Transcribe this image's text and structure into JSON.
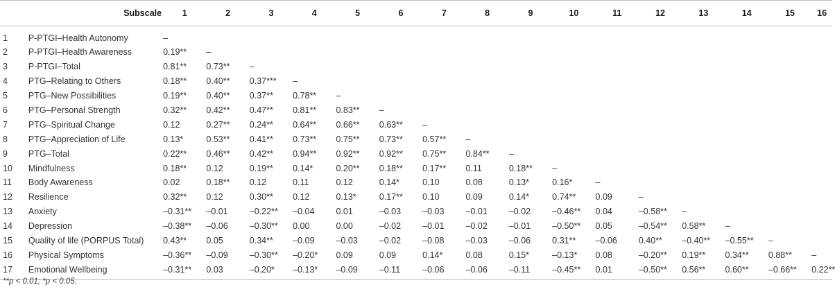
{
  "table": {
    "header_subscale": "Subscale",
    "columns": [
      "1",
      "2",
      "3",
      "4",
      "5",
      "6",
      "7",
      "8",
      "9",
      "10",
      "11",
      "12",
      "13",
      "14",
      "15",
      "16"
    ],
    "rows": [
      {
        "num": "1",
        "label": "P-PTGI–Health Autonomy",
        "values": [
          "–"
        ]
      },
      {
        "num": "2",
        "label": "P-PTGI–Health Awareness",
        "values": [
          "0.19**",
          "–"
        ]
      },
      {
        "num": "3",
        "label": "P-PTGI–Total",
        "values": [
          "0.81**",
          "0.73**",
          "–"
        ]
      },
      {
        "num": "4",
        "label": "PTG–Relating to Others",
        "values": [
          "0.18**",
          "0.40**",
          "0.37***",
          "–"
        ]
      },
      {
        "num": "5",
        "label": "PTG–New Possibilities",
        "values": [
          "0.19**",
          "0.40**",
          "0.37**",
          "0.78**",
          "–"
        ]
      },
      {
        "num": "6",
        "label": "PTG–Personal Strength",
        "values": [
          "0.32**",
          "0.42**",
          "0.47**",
          "0.81**",
          "0.83**",
          "–"
        ]
      },
      {
        "num": "7",
        "label": "PTG–Spiritual Change",
        "values": [
          "0.12",
          "0.27**",
          "0.24**",
          "0.64**",
          "0.66**",
          "0.63**",
          "–"
        ]
      },
      {
        "num": "8",
        "label": "PTG–Appreciation of Life",
        "values": [
          "0.13*",
          "0.53**",
          "0.41**",
          "0.73**",
          "0.75**",
          "0.73**",
          "0.57**",
          "–"
        ]
      },
      {
        "num": "9",
        "label": "PTG–Total",
        "values": [
          "0.22**",
          "0.46**",
          "0.42**",
          "0.94**",
          "0.92**",
          "0.92**",
          "0.75**",
          "0.84**",
          "–"
        ]
      },
      {
        "num": "10",
        "label": "Mindfulness",
        "values": [
          "0.18**",
          "0.12",
          "0.19**",
          "0.14*",
          "0.20**",
          "0.18**",
          "0.17**",
          "0.11",
          "0.18**",
          "–"
        ]
      },
      {
        "num": "11",
        "label": "Body Awareness",
        "values": [
          "0.02",
          "0.18**",
          "0.12",
          "0.11",
          "0.12",
          "0.14*",
          "0.10",
          "0.08",
          "0.13*",
          "0.16*",
          "–"
        ]
      },
      {
        "num": "12",
        "label": "Resilience",
        "values": [
          "0.32**",
          "0.12",
          "0.30**",
          "0.12",
          "0.13*",
          "0.17**",
          "0.10",
          "0.09",
          "0.14*",
          "0.74**",
          "0.09",
          "–"
        ]
      },
      {
        "num": "13",
        "label": "Anxiety",
        "values": [
          "–0.31**",
          "–0.01",
          "–0.22**",
          "–0.04",
          "0.01",
          "–0.03",
          "–0.03",
          "–0.01",
          "–0.02",
          "–0.46**",
          "0.04",
          "–0.58**",
          "–"
        ]
      },
      {
        "num": "14",
        "label": "Depression",
        "values": [
          "–0.38**",
          "–0.06",
          "–0.30**",
          "0.00",
          "0.00",
          "–0.02",
          "–0.01",
          "–0.02",
          "–0.01",
          "–0.50**",
          "0.05",
          "–0.54**",
          "0.58**",
          "–"
        ]
      },
      {
        "num": "15",
        "label": "Quality of life (PORPUS Total)",
        "values": [
          "0.43**",
          "0.05",
          "0.34**",
          "–0.09",
          "–0.03",
          "–0.02",
          "–0.08",
          "–0.03",
          "–0.06",
          "0.31**",
          "–0.06",
          "0.40**",
          "–0.40**",
          "–0.55**",
          "–"
        ]
      },
      {
        "num": "16",
        "label": "Physical Symptoms",
        "values": [
          "–0.36**",
          "–0.09",
          "–0.30**",
          "–0.20*",
          "0.09",
          "0.09",
          "0.14*",
          "0.08",
          "0.15*",
          "–0.13*",
          "0.08",
          "–0.20**",
          "0.19**",
          "0.34**",
          "0.88**",
          "–"
        ]
      },
      {
        "num": "17",
        "label": "Emotional Wellbeing",
        "values": [
          "–0.31**",
          "0.03",
          "–0.20*",
          "–0.13*",
          "–0.09",
          "–0.11",
          "–0.06",
          "–0.06",
          "–0.11",
          "–0.45**",
          "0.01",
          "–0.50**",
          "0.56**",
          "0.60**",
          "–0.66**",
          "0.22**"
        ]
      }
    ]
  },
  "footnote": "**p < 0.01; *p < 0.05."
}
